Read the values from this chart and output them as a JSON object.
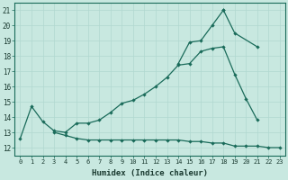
{
  "xlabel": "Humidex (Indice chaleur)",
  "xlim": [
    -0.5,
    23.5
  ],
  "ylim": [
    11.5,
    21.5
  ],
  "xticks": [
    0,
    1,
    2,
    3,
    4,
    5,
    6,
    7,
    8,
    9,
    10,
    11,
    12,
    13,
    14,
    15,
    16,
    17,
    18,
    19,
    20,
    21,
    22,
    23
  ],
  "yticks": [
    12,
    13,
    14,
    15,
    16,
    17,
    18,
    19,
    20,
    21
  ],
  "bg_color": "#c8e8e0",
  "grid_color": "#b0d8d0",
  "line_color": "#1a6b5a",
  "line1_x": [
    0,
    1,
    2,
    3,
    4,
    5,
    6,
    7,
    8,
    9,
    10,
    11,
    12,
    13,
    14,
    15,
    16,
    17,
    18,
    19,
    20,
    21
  ],
  "line1_y": [
    12.6,
    14.7,
    13.7,
    13.1,
    13.0,
    13.6,
    13.6,
    13.8,
    14.3,
    14.9,
    15.1,
    15.5,
    16.0,
    16.6,
    17.4,
    17.5,
    18.3,
    18.5,
    18.6,
    16.8,
    15.2,
    13.8
  ],
  "line2_x": [
    14,
    15,
    16,
    17,
    18
  ],
  "line2_y": [
    17.5,
    18.9,
    19.0,
    20.0,
    21.0
  ],
  "line3_x": [
    18,
    19,
    21
  ],
  "line3_y": [
    21.0,
    19.5,
    18.6
  ],
  "line4_x": [
    3,
    4,
    5,
    6,
    7,
    8,
    9,
    10,
    11,
    12,
    13,
    14,
    15,
    16,
    17,
    18,
    19,
    20,
    21,
    22,
    23
  ],
  "line4_y": [
    13.0,
    12.8,
    12.6,
    12.5,
    12.5,
    12.5,
    12.5,
    12.5,
    12.5,
    12.5,
    12.5,
    12.5,
    12.4,
    12.4,
    12.3,
    12.3,
    12.1,
    12.1,
    12.1,
    12.0,
    12.0
  ]
}
